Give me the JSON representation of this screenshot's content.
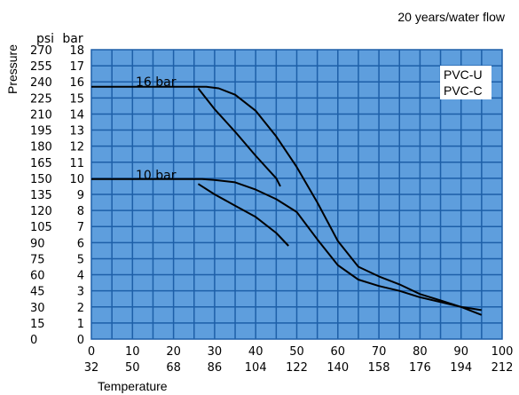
{
  "chart_data": {
    "type": "line",
    "title": "20 years/water flow",
    "ylabel": "Pressure",
    "xlabel": "Temperature",
    "y_units": [
      "psi",
      "bar"
    ],
    "y_bar_ticks": [
      0,
      1,
      2,
      3,
      4,
      5,
      6,
      7,
      8,
      9,
      10,
      11,
      12,
      13,
      14,
      15,
      16,
      17,
      18
    ],
    "y_psi_ticks": [
      0,
      15,
      30,
      45,
      60,
      75,
      90,
      105,
      120,
      135,
      150,
      165,
      180,
      195,
      210,
      225,
      240,
      255,
      270
    ],
    "x_c_ticks": [
      0,
      10,
      20,
      30,
      40,
      50,
      60,
      70,
      80,
      90,
      100
    ],
    "x_f_ticks": [
      32,
      50,
      68,
      86,
      104,
      122,
      140,
      158,
      176,
      194,
      212
    ],
    "xlim": [
      0,
      100
    ],
    "ylim": [
      0,
      18
    ],
    "grid": true,
    "legend": [
      "PVC-U",
      "PVC-C"
    ],
    "legend_position": "top-right",
    "annotations": [
      "16 bar",
      "10 bar"
    ],
    "series": [
      {
        "x": [
          0,
          28,
          31,
          35,
          40,
          45,
          50,
          55,
          60,
          65,
          70,
          75,
          80,
          85,
          90,
          95
        ],
        "y": [
          15.7,
          15.7,
          15.6,
          15.2,
          14.2,
          12.6,
          10.7,
          8.5,
          6.1,
          4.5,
          3.9,
          3.4,
          2.8,
          2.4,
          2.0,
          1.5
        ]
      },
      {
        "x": [
          26,
          30,
          35,
          40,
          45,
          46
        ],
        "y": [
          15.6,
          14.3,
          12.9,
          11.4,
          10.0,
          9.5
        ]
      },
      {
        "x": [
          0,
          27,
          30,
          35,
          40,
          45,
          50,
          55,
          60,
          65,
          70,
          75,
          80,
          85,
          90,
          95
        ],
        "y": [
          9.95,
          9.95,
          9.9,
          9.75,
          9.3,
          8.7,
          7.9,
          6.2,
          4.6,
          3.7,
          3.3,
          3.0,
          2.6,
          2.3,
          2.0,
          1.8
        ]
      },
      {
        "x": [
          26,
          30,
          35,
          40,
          45,
          48
        ],
        "y": [
          9.65,
          9.0,
          8.3,
          7.6,
          6.6,
          5.8
        ]
      }
    ]
  }
}
